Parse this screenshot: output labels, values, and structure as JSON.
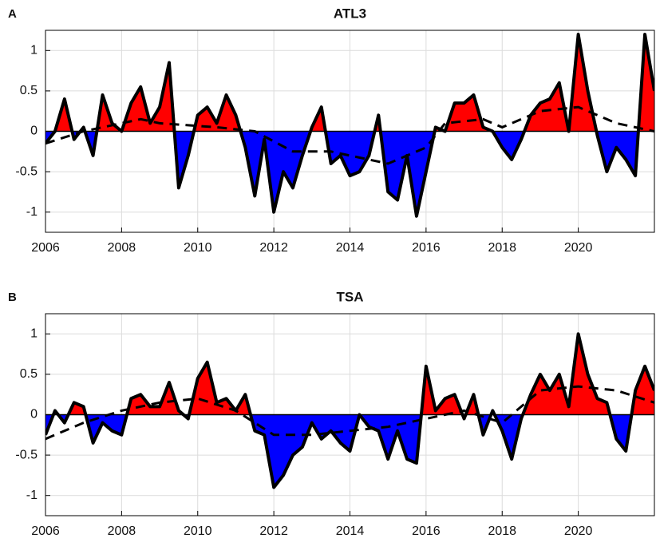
{
  "chart_data": [
    {
      "type": "filled-line",
      "panel_label": "A",
      "title": "ATL3",
      "x": [
        2006,
        2006.25,
        2006.5,
        2006.75,
        2007,
        2007.25,
        2007.5,
        2007.75,
        2008,
        2008.25,
        2008.5,
        2008.75,
        2009,
        2009.25,
        2009.5,
        2009.75,
        2010,
        2010.25,
        2010.5,
        2010.75,
        2011,
        2011.25,
        2011.5,
        2011.75,
        2012,
        2012.25,
        2012.5,
        2012.75,
        2013,
        2013.25,
        2013.5,
        2013.75,
        2014,
        2014.25,
        2014.5,
        2014.75,
        2015,
        2015.25,
        2015.5,
        2015.75,
        2016,
        2016.25,
        2016.5,
        2016.75,
        2017,
        2017.25,
        2017.5,
        2017.75,
        2018,
        2018.25,
        2018.5,
        2018.75,
        2019,
        2019.25,
        2019.5,
        2019.75,
        2020,
        2020.25,
        2020.5,
        2020.75,
        2021,
        2021.25,
        2021.5,
        2021.75,
        2022
      ],
      "series": [
        {
          "color": "#000000",
          "values": [
            -0.15,
            0.0,
            0.4,
            -0.1,
            0.05,
            -0.3,
            0.45,
            0.1,
            0.0,
            0.35,
            0.55,
            0.1,
            0.3,
            0.85,
            -0.7,
            -0.3,
            0.2,
            0.3,
            0.1,
            0.45,
            0.2,
            -0.2,
            -0.8,
            -0.1,
            -1.0,
            -0.5,
            -0.7,
            -0.3,
            0.05,
            0.3,
            -0.4,
            -0.3,
            -0.55,
            -0.5,
            -0.3,
            0.2,
            -0.75,
            -0.85,
            -0.3,
            -1.05,
            -0.5,
            0.05,
            0.0,
            0.35,
            0.35,
            0.45,
            0.05,
            0.0,
            -0.2,
            -0.35,
            -0.1,
            0.2,
            0.35,
            0.4,
            0.6,
            0.0,
            1.2,
            0.5,
            -0.05,
            -0.5,
            -0.2,
            -0.35,
            -0.55,
            1.2,
            0.5
          ]
        },
        {
          "color": "#000000",
          "dashed": true,
          "x": [
            2006,
            2007,
            2008,
            2008.5,
            2009,
            2010.5,
            2011.5,
            2012.5,
            2013.5,
            2015,
            2016,
            2016.5,
            2017.5,
            2018,
            2019,
            2020,
            2021,
            2022
          ],
          "values": [
            -0.15,
            0.0,
            0.1,
            0.15,
            0.1,
            0.05,
            0.0,
            -0.25,
            -0.25,
            -0.4,
            -0.2,
            0.1,
            0.15,
            0.05,
            0.25,
            0.3,
            0.1,
            0.0
          ]
        }
      ],
      "fill_above": "#ff0000",
      "fill_below": "#0000ff",
      "xlim": [
        2006,
        2022
      ],
      "xticks": [
        2006,
        2008,
        2010,
        2012,
        2014,
        2016,
        2018,
        2020
      ],
      "ylim": [
        -1.25,
        1.25
      ],
      "yticks": [
        -1,
        -0.5,
        0,
        0.5,
        1
      ],
      "grid": true
    },
    {
      "type": "filled-line",
      "panel_label": "B",
      "title": "TSA",
      "x": [
        2006,
        2006.25,
        2006.5,
        2006.75,
        2007,
        2007.25,
        2007.5,
        2007.75,
        2008,
        2008.25,
        2008.5,
        2008.75,
        2009,
        2009.25,
        2009.5,
        2009.75,
        2010,
        2010.25,
        2010.5,
        2010.75,
        2011,
        2011.25,
        2011.5,
        2011.75,
        2012,
        2012.25,
        2012.5,
        2012.75,
        2013,
        2013.25,
        2013.5,
        2013.75,
        2014,
        2014.25,
        2014.5,
        2014.75,
        2015,
        2015.25,
        2015.5,
        2015.75,
        2016,
        2016.25,
        2016.5,
        2016.75,
        2017,
        2017.25,
        2017.5,
        2017.75,
        2018,
        2018.25,
        2018.5,
        2018.75,
        2019,
        2019.25,
        2019.5,
        2019.75,
        2020,
        2020.25,
        2020.5,
        2020.75,
        2021,
        2021.25,
        2021.5,
        2021.75,
        2022
      ],
      "series": [
        {
          "color": "#000000",
          "values": [
            -0.25,
            0.05,
            -0.1,
            0.15,
            0.1,
            -0.35,
            -0.1,
            -0.2,
            -0.25,
            0.2,
            0.25,
            0.1,
            0.1,
            0.4,
            0.05,
            -0.05,
            0.45,
            0.65,
            0.15,
            0.2,
            0.05,
            0.25,
            -0.2,
            -0.25,
            -0.9,
            -0.75,
            -0.5,
            -0.4,
            -0.1,
            -0.3,
            -0.2,
            -0.35,
            -0.45,
            0.0,
            -0.15,
            -0.2,
            -0.55,
            -0.2,
            -0.55,
            -0.6,
            0.6,
            0.05,
            0.2,
            0.25,
            -0.05,
            0.25,
            -0.25,
            0.05,
            -0.2,
            -0.55,
            -0.05,
            0.25,
            0.5,
            0.3,
            0.5,
            0.1,
            1.0,
            0.5,
            0.2,
            0.15,
            -0.3,
            -0.45,
            0.3,
            0.6,
            0.3
          ]
        },
        {
          "color": "#000000",
          "dashed": true,
          "x": [
            2006,
            2007,
            2008,
            2009,
            2010,
            2011,
            2012,
            2013,
            2014,
            2015,
            2016,
            2017,
            2018,
            2019,
            2020,
            2021,
            2022
          ],
          "values": [
            -0.3,
            -0.1,
            0.05,
            0.15,
            0.2,
            0.05,
            -0.25,
            -0.25,
            -0.2,
            -0.15,
            -0.05,
            0.05,
            -0.1,
            0.3,
            0.35,
            0.3,
            0.15
          ]
        }
      ],
      "fill_above": "#ff0000",
      "fill_below": "#0000ff",
      "xlim": [
        2006,
        2022
      ],
      "xticks": [
        2006,
        2008,
        2010,
        2012,
        2014,
        2016,
        2018,
        2020
      ],
      "ylim": [
        -1.25,
        1.25
      ],
      "yticks": [
        -1,
        -0.5,
        0,
        0.5,
        1
      ],
      "grid": true
    }
  ]
}
